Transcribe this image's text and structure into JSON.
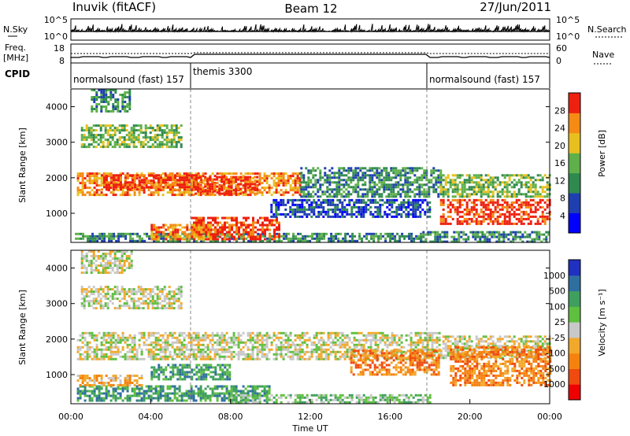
{
  "header": {
    "title_left": "Inuvik (fitACF)",
    "title_center": "Beam 12",
    "title_right": "27/Jun/2011"
  },
  "nsky_panel": {
    "left_label": "N.Sky",
    "right_label": "N.Search",
    "yticks_left": [
      "10^5",
      "10^0"
    ],
    "yticks_right": [
      "10^5",
      "10^0"
    ]
  },
  "freq_panel": {
    "left_label_1": "Freq.",
    "left_label_2": "[MHz]",
    "right_label": "Nave",
    "yticks_left": [
      "18",
      "8"
    ],
    "yticks_right": [
      "60",
      "0"
    ]
  },
  "cpid": {
    "label": "CPID",
    "segments": [
      {
        "name": "normalsound (fast) 157",
        "start_h": 0
      },
      {
        "name": "themis 3300",
        "start_h": 6
      },
      {
        "name": "normalsound (fast) 157",
        "start_h": 18
      }
    ]
  },
  "time_axis": {
    "label": "Time UT",
    "ticks": [
      "00:00",
      "04:00",
      "08:00",
      "12:00",
      "16:00",
      "20:00",
      "00:00"
    ]
  },
  "chart_data": [
    {
      "type": "heatmap",
      "quantity": "power",
      "ylabel": "Slant Range [km]",
      "yticks": [
        1000,
        2000,
        3000,
        4000
      ],
      "ylim": [
        180,
        4500
      ],
      "xlim_hours": [
        0,
        24
      ],
      "colorbar_label": "Power [dB]",
      "colorbar_ticks": [
        "28",
        "24",
        "20",
        "16",
        "12",
        "8",
        "4"
      ],
      "colorbar_colors": [
        "#0000ff",
        "#1f3fb0",
        "#2f8a4f",
        "#5fb04a",
        "#e8c01e",
        "#f58a14",
        "#ee2010"
      ],
      "regions": [
        {
          "t0": 0.3,
          "t1": 11.5,
          "r0": 1500,
          "r1": 2150,
          "level": 5
        },
        {
          "t0": 1.5,
          "t1": 6.5,
          "r0": 1650,
          "r1": 2100,
          "level": 6
        },
        {
          "t0": 6.2,
          "t1": 9.5,
          "r0": 1550,
          "r1": 2050,
          "level": 6
        },
        {
          "t0": 11.5,
          "t1": 18.5,
          "r0": 1500,
          "r1": 2300,
          "level": 2
        },
        {
          "t0": 18.5,
          "t1": 24,
          "r0": 1500,
          "r1": 2100,
          "level": 3
        },
        {
          "t0": 0.2,
          "t1": 17.5,
          "r0": 200,
          "r1": 450,
          "level": 2
        },
        {
          "t0": 6.0,
          "t1": 10.5,
          "r0": 250,
          "r1": 900,
          "level": 6
        },
        {
          "t0": 4.0,
          "t1": 7.0,
          "r0": 300,
          "r1": 700,
          "level": 5
        },
        {
          "t0": 18.5,
          "t1": 24,
          "r0": 700,
          "r1": 1400,
          "level": 6
        },
        {
          "t0": 0.5,
          "t1": 5.5,
          "r0": 2900,
          "r1": 3500,
          "level": 3
        },
        {
          "t0": 1.0,
          "t1": 3.0,
          "r0": 3900,
          "r1": 4500,
          "level": 2
        },
        {
          "t0": 10.0,
          "t1": 18.0,
          "r0": 900,
          "r1": 1400,
          "level": 1
        },
        {
          "t0": 17.5,
          "t1": 24,
          "r0": 200,
          "r1": 500,
          "level": 2
        }
      ]
    },
    {
      "type": "heatmap",
      "quantity": "velocity",
      "ylabel": "Slant Range [km]",
      "yticks": [
        1000,
        2000,
        3000,
        4000
      ],
      "ylim": [
        180,
        4500
      ],
      "xlim_hours": [
        0,
        24
      ],
      "colorbar_label": "Velocity [m s⁻¹]",
      "colorbar_ticks": [
        "1000",
        "500",
        "100",
        "25",
        "-25",
        "-100",
        "-500",
        "-1000"
      ],
      "colorbar_colors": [
        "#ee0000",
        "#f04a10",
        "#f5820f",
        "#f2a82a",
        "#c8c8c8",
        "#5fbf3f",
        "#3f9f5f",
        "#2f6fa0",
        "#2030c0"
      ],
      "regions": [
        {
          "t0": 0.3,
          "t1": 18.5,
          "r0": 1450,
          "r1": 2200,
          "level": 4
        },
        {
          "t0": 18.5,
          "t1": 24,
          "r0": 1450,
          "r1": 2100,
          "level": 4
        },
        {
          "t0": 19.0,
          "t1": 24,
          "r0": 700,
          "r1": 1800,
          "level": 2
        },
        {
          "t0": 14.0,
          "t1": 18.5,
          "r0": 1000,
          "r1": 1700,
          "level": 2
        },
        {
          "t0": 0.3,
          "t1": 10.0,
          "r0": 300,
          "r1": 700,
          "level": 6
        },
        {
          "t0": 0.3,
          "t1": 3.5,
          "r0": 700,
          "r1": 1000,
          "level": 3
        },
        {
          "t0": 4.0,
          "t1": 8.0,
          "r0": 900,
          "r1": 1300,
          "level": 6
        },
        {
          "t0": 8.0,
          "t1": 18.0,
          "r0": 200,
          "r1": 450,
          "level": 5
        },
        {
          "t0": 0.5,
          "t1": 5.5,
          "r0": 2900,
          "r1": 3500,
          "level": 4
        },
        {
          "t0": 0.5,
          "t1": 3.0,
          "r0": 3900,
          "r1": 4500,
          "level": 4
        }
      ]
    }
  ]
}
